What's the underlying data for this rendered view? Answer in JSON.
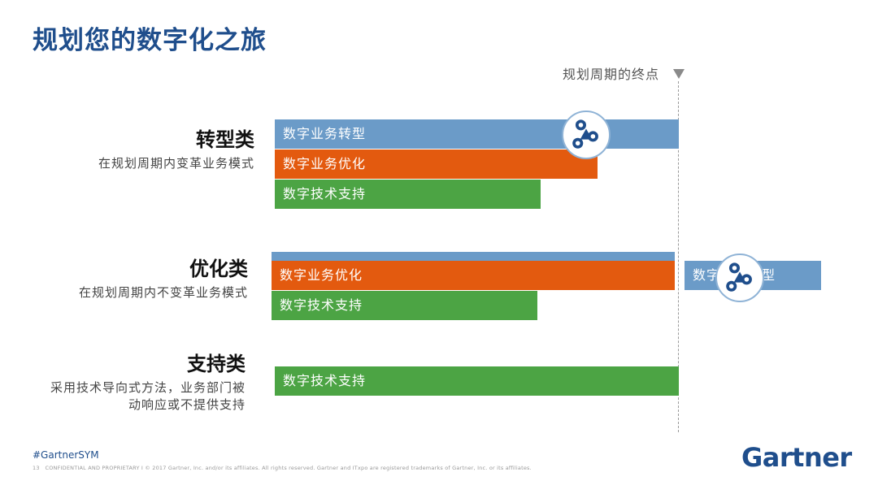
{
  "title": "规划您的数字化之旅",
  "end_label": "规划周期的终点",
  "categories": [
    {
      "title": "转型类",
      "desc_lines": [
        "在规划周期内变革业务模式"
      ],
      "bars": [
        "数字业务转型",
        "数字业务优化",
        "数字技术支持"
      ]
    },
    {
      "title": "优化类",
      "desc_lines": [
        "在规划周期内不变革业务模式"
      ],
      "bars": [
        "",
        "数字业务优化",
        "数字技术支持"
      ],
      "overflow_bar": "数字业务转型"
    },
    {
      "title": "支持类",
      "desc_lines": [
        "采用技术导向式方法，业务部门被",
        "动响应或不提供支持"
      ],
      "bars": [
        "数字技术支持"
      ]
    }
  ],
  "colors": {
    "title": "#1f4e8c",
    "blue_bar": "#6b9bc8",
    "orange_bar": "#e35a0f",
    "green_bar": "#4ca444"
  },
  "icon": "digital-journey-icon",
  "footer": {
    "hashtag": "#GartnerSYM",
    "page_number": "13",
    "legal": "CONFIDENTIAL AND PROPRIETARY  I  © 2017 Gartner, Inc. and/or its affiliates. All rights reserved. Gartner and ITxpo are registered trademarks of Gartner, Inc. or its affiliates."
  },
  "logo": "Gartner"
}
